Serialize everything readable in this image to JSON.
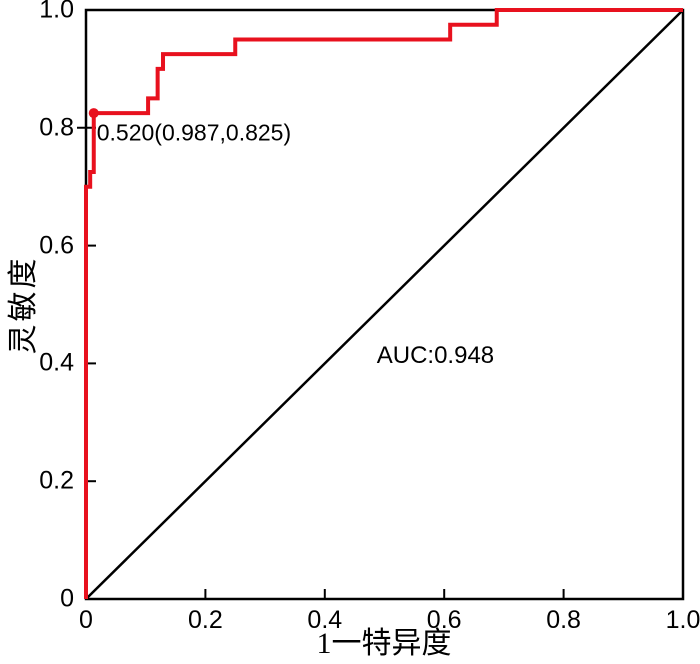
{
  "chart_data": {
    "type": "line",
    "subtype": "roc-curve",
    "title": "",
    "xlabel": "1一特异度",
    "ylabel": "灵敏度",
    "xlim": [
      0,
      1.0
    ],
    "ylim": [
      0,
      1.0
    ],
    "grid": false,
    "legend": "none",
    "background_color": "#ffffff",
    "axis_color": "#000000",
    "auc": 0.948,
    "x_ticks": [
      {
        "v": 0.0,
        "label": "0"
      },
      {
        "v": 0.2,
        "label": "0.2"
      },
      {
        "v": 0.4,
        "label": "0.4"
      },
      {
        "v": 0.6,
        "label": "0.6"
      },
      {
        "v": 0.8,
        "label": "0.8"
      },
      {
        "v": 1.0,
        "label": "1.0"
      }
    ],
    "y_ticks": [
      {
        "v": 0.0,
        "label": "0"
      },
      {
        "v": 0.2,
        "label": "0.2"
      },
      {
        "v": 0.4,
        "label": "0.4"
      },
      {
        "v": 0.6,
        "label": "0.6"
      },
      {
        "v": 0.8,
        "label": "0.8",
        "cross": true
      },
      {
        "v": 1.0,
        "label": "1.0"
      }
    ],
    "series": [
      {
        "name": "roc-curve",
        "color": "#e8111e",
        "width": 4,
        "points": [
          [
            0.0,
            0.0
          ],
          [
            0.0,
            0.7
          ],
          [
            0.007,
            0.7
          ],
          [
            0.007,
            0.725
          ],
          [
            0.013,
            0.725
          ],
          [
            0.013,
            0.825
          ],
          [
            0.104,
            0.825
          ],
          [
            0.104,
            0.85
          ],
          [
            0.12,
            0.85
          ],
          [
            0.12,
            0.9
          ],
          [
            0.129,
            0.9
          ],
          [
            0.129,
            0.925
          ],
          [
            0.25,
            0.925
          ],
          [
            0.25,
            0.95
          ],
          [
            0.61,
            0.95
          ],
          [
            0.61,
            0.975
          ],
          [
            0.688,
            0.975
          ],
          [
            0.688,
            1.0
          ],
          [
            1.0,
            1.0
          ]
        ]
      },
      {
        "name": "reference-diagonal",
        "color": "#000000",
        "width": 2.5,
        "points": [
          [
            0.0,
            0.0
          ],
          [
            1.0,
            1.0
          ]
        ]
      }
    ],
    "marker": {
      "x": 0.013,
      "y": 0.825,
      "radius": 5,
      "color": "#e8111e"
    },
    "annotations": {
      "cutoff": {
        "text": "0.520(0.987,0.825)",
        "x": 0.018,
        "y": 0.792
      },
      "auc": {
        "text": "AUC:0.948",
        "x": 0.487,
        "y": 0.413
      }
    }
  }
}
